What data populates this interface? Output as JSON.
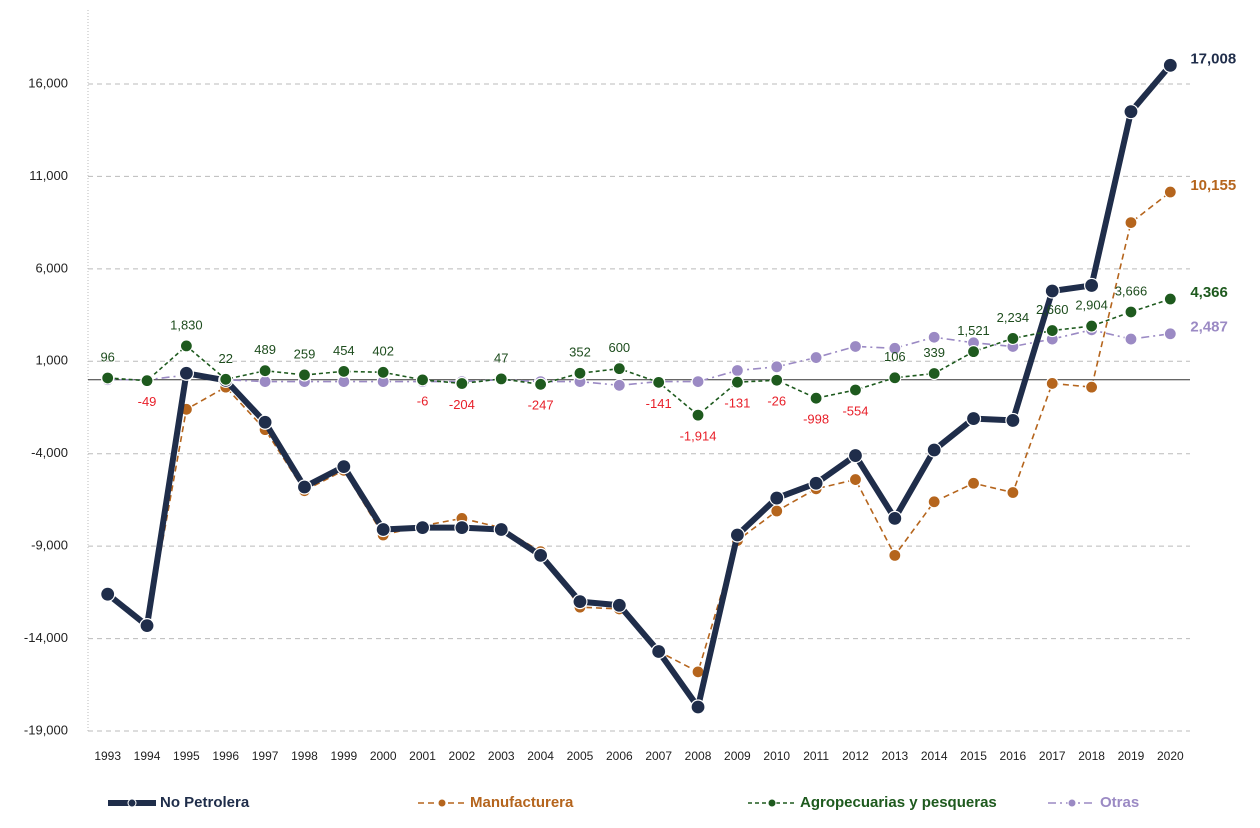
{
  "chart_data": {
    "type": "line",
    "categories": [
      "1993",
      "1994",
      "1995",
      "1996",
      "1997",
      "1998",
      "1999",
      "2000",
      "2001",
      "2002",
      "2003",
      "2004",
      "2005",
      "2006",
      "2007",
      "2008",
      "2009",
      "2010",
      "2011",
      "2012",
      "2013",
      "2014",
      "2015",
      "2016",
      "2017",
      "2018",
      "2019",
      "2020"
    ],
    "series": [
      {
        "name": "No Petrolera",
        "color": "#1f2d4a",
        "values": [
          -11600,
          -13300,
          350,
          -30,
          -2300,
          -5800,
          -4700,
          -8100,
          -8000,
          -8000,
          -8100,
          -9500,
          -12000,
          -12200,
          -14700,
          -17700,
          -8400,
          -6400,
          -5600,
          -4100,
          -7500,
          -3800,
          -2100,
          -2200,
          4800,
          5100,
          14500,
          17008
        ],
        "value_labels": [
          null,
          null,
          null,
          null,
          null,
          null,
          null,
          null,
          null,
          null,
          null,
          null,
          null,
          null,
          null,
          null,
          null,
          null,
          null,
          null,
          null,
          null,
          null,
          null,
          null,
          null,
          null,
          "17,008"
        ]
      },
      {
        "name": "Manufacturera",
        "color": "#b5651d",
        "values": [
          -11600,
          -13400,
          -1600,
          -400,
          -2700,
          -6000,
          -4900,
          -8400,
          -7900,
          -7500,
          -8000,
          -9300,
          -12300,
          -12400,
          -14700,
          -15800,
          -8700,
          -7100,
          -5900,
          -5400,
          -9500,
          -6600,
          -5600,
          -6100,
          -200,
          -400,
          8500,
          10155
        ],
        "value_labels": [
          null,
          null,
          null,
          null,
          null,
          null,
          null,
          null,
          null,
          null,
          null,
          null,
          null,
          null,
          null,
          null,
          null,
          null,
          null,
          null,
          null,
          null,
          null,
          null,
          null,
          null,
          null,
          "10,155"
        ]
      },
      {
        "name": "Agropecuarias y pesqueras",
        "color": "#1e5a1e",
        "values": [
          96,
          -49,
          1830,
          22,
          489,
          259,
          454,
          402,
          -6,
          -204,
          47,
          -247,
          352,
          600,
          -141,
          -1914,
          -131,
          -26,
          -998,
          -554,
          106,
          339,
          1521,
          2234,
          2660,
          2904,
          3666,
          4366
        ],
        "value_labels": [
          "96",
          "-49",
          "1,830",
          "22",
          "489",
          "259",
          "454",
          "402",
          "-6",
          "-204",
          "47",
          "-247",
          "352",
          "600",
          "-141",
          "-1,914",
          "-131",
          "-26",
          "-998",
          "-554",
          "106",
          "339",
          "1,521",
          "2,234",
          "2,660",
          "2,904",
          "3,666",
          "4,366"
        ]
      },
      {
        "name": "Otras",
        "color": "#9b8ac4",
        "values": [
          0,
          0,
          250,
          0,
          -100,
          -100,
          -100,
          -100,
          -100,
          -100,
          0,
          -100,
          -100,
          -300,
          -100,
          -100,
          500,
          700,
          1200,
          1800,
          1700,
          2300,
          2000,
          1800,
          2200,
          2700,
          2200,
          2487
        ],
        "value_labels": [
          null,
          null,
          null,
          null,
          null,
          null,
          null,
          null,
          null,
          null,
          null,
          null,
          null,
          null,
          null,
          null,
          null,
          null,
          null,
          null,
          null,
          null,
          null,
          null,
          null,
          null,
          null,
          "2,487"
        ]
      }
    ],
    "ylim": [
      -19000,
      20000
    ],
    "yticks": [
      {
        "value": -19000,
        "label": "-19,000"
      },
      {
        "value": -14000,
        "label": "-14,000"
      },
      {
        "value": -9000,
        "label": "-9,000"
      },
      {
        "value": -4000,
        "label": "-4,000"
      },
      {
        "value": 1000,
        "label": "1,000"
      },
      {
        "value": 6000,
        "label": "6,000"
      },
      {
        "value": 11000,
        "label": "11,000"
      },
      {
        "value": 16000,
        "label": "16,000"
      }
    ],
    "grid": true,
    "legend": "bottom"
  }
}
